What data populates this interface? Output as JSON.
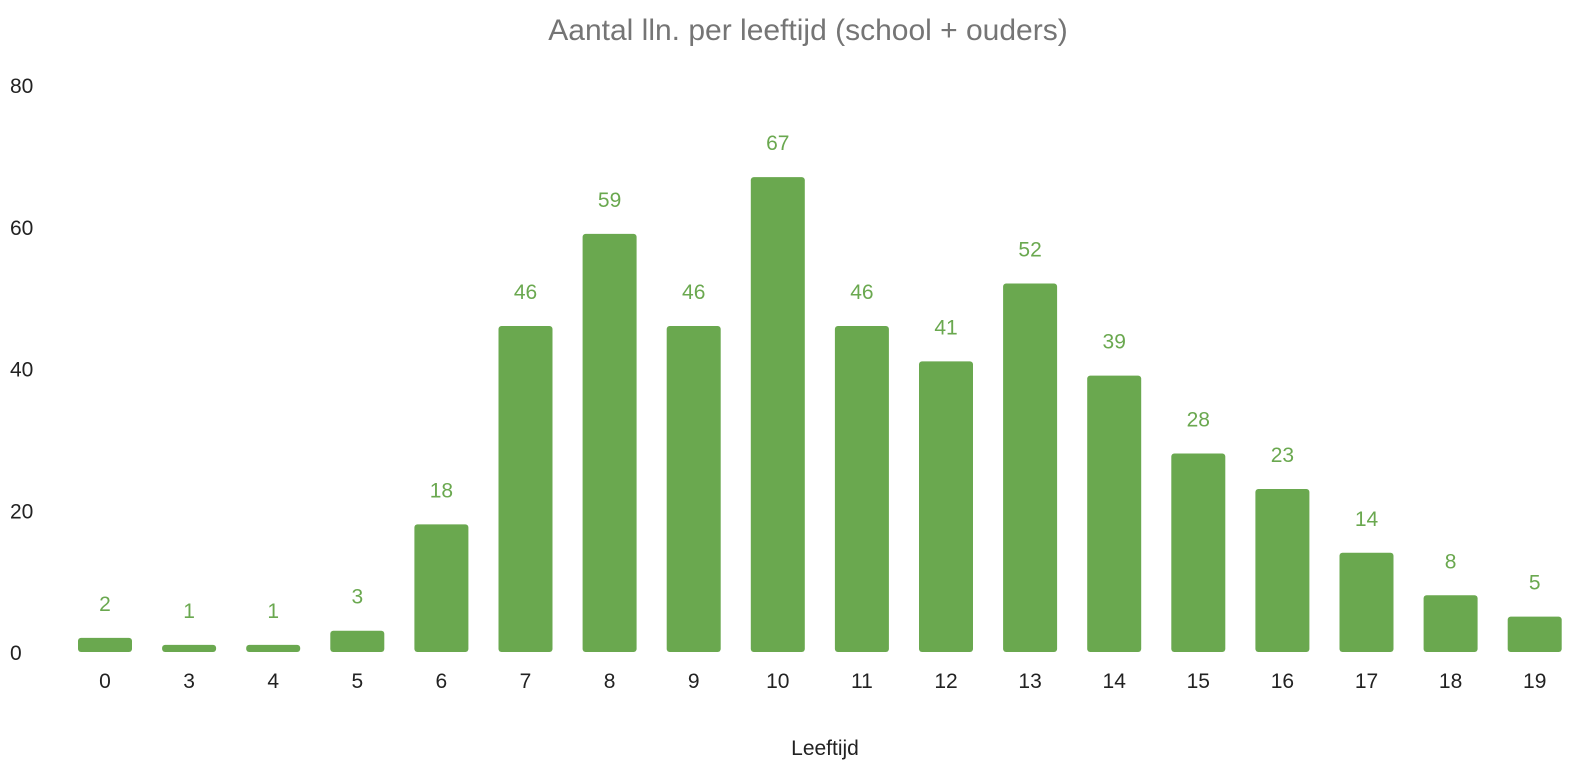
{
  "chart_data": {
    "type": "bar",
    "title": "Aantal lln. per leeftijd (school + ouders)",
    "xlabel": "Leeftijd",
    "ylabel": "",
    "categories": [
      "0",
      "3",
      "4",
      "5",
      "6",
      "7",
      "8",
      "9",
      "10",
      "11",
      "12",
      "13",
      "14",
      "15",
      "16",
      "17",
      "18",
      "19"
    ],
    "values": [
      2,
      1,
      1,
      3,
      18,
      46,
      59,
      46,
      67,
      46,
      41,
      52,
      39,
      28,
      23,
      14,
      8,
      5
    ],
    "ylim": [
      0,
      80
    ],
    "yticks": [
      0,
      20,
      40,
      60,
      80
    ],
    "grid": false,
    "legend": "none",
    "data_labels": true,
    "colors": {
      "bar": "#6aa84f",
      "label": "#6aa84f"
    }
  }
}
